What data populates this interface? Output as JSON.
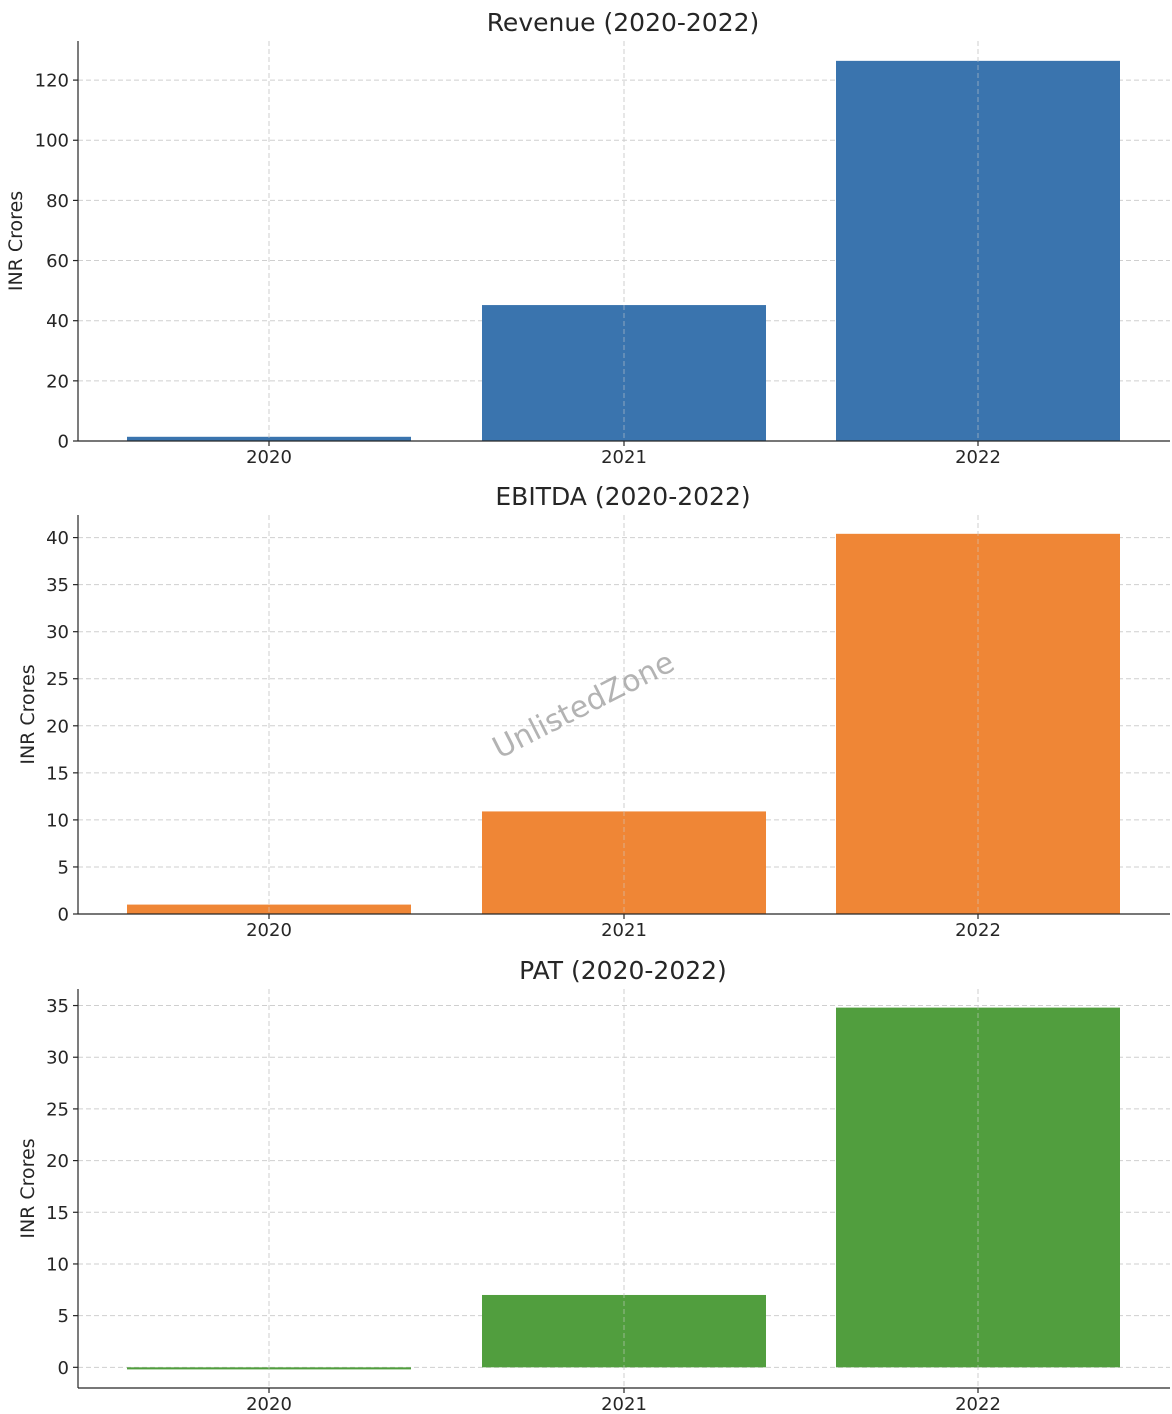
{
  "watermark": "UnlistedZone",
  "chart_data": [
    {
      "type": "bar",
      "title": "Revenue (2020-2022)",
      "ylabel": "INR Crores",
      "categories": [
        "2020",
        "2021",
        "2022"
      ],
      "values": [
        1.4,
        45.2,
        126.4
      ],
      "ylim": [
        0,
        133
      ],
      "yticks": [
        0,
        20,
        40,
        60,
        80,
        100,
        120
      ],
      "color": "#3a74ae",
      "grid": true
    },
    {
      "type": "bar",
      "title": "EBITDA (2020-2022)",
      "ylabel": "INR Crores",
      "categories": [
        "2020",
        "2021",
        "2022"
      ],
      "values": [
        1.0,
        10.9,
        40.4
      ],
      "ylim": [
        0,
        42.4
      ],
      "yticks": [
        0,
        5,
        10,
        15,
        20,
        25,
        30,
        35,
        40
      ],
      "color": "#ef8636",
      "grid": true
    },
    {
      "type": "bar",
      "title": "PAT (2020-2022)",
      "ylabel": "INR Crores",
      "categories": [
        "2020",
        "2021",
        "2022"
      ],
      "values": [
        -0.2,
        7.0,
        34.8
      ],
      "ylim": [
        -2,
        36.6
      ],
      "yticks": [
        0,
        5,
        10,
        15,
        20,
        25,
        30,
        35
      ],
      "color": "#519e3e",
      "grid": true
    }
  ]
}
